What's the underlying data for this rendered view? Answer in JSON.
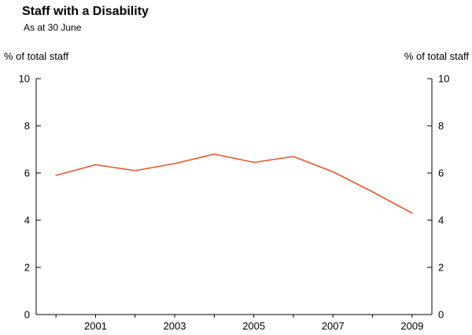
{
  "header": {
    "title": "Staff with a Disability",
    "subtitle": "As at 30 June"
  },
  "axis_units": {
    "left": "% of total staff",
    "right": "% of total staff"
  },
  "chart_data": {
    "type": "line",
    "title": "Staff with a Disability",
    "subtitle": "As at 30 June",
    "x": [
      2000,
      2001,
      2002,
      2003,
      2004,
      2005,
      2006,
      2007,
      2008,
      2009
    ],
    "series": [
      {
        "name": "Staff with a disability",
        "values": [
          5.9,
          6.35,
          6.1,
          6.4,
          6.8,
          6.45,
          6.7,
          6.05,
          5.2,
          4.3
        ]
      }
    ],
    "line_color": "#e8552b",
    "axis_color": "#000000",
    "xlim": [
      1999.5,
      2009.5
    ],
    "ylim": [
      0,
      10
    ],
    "yticks": [
      0,
      2,
      4,
      6,
      8,
      10
    ],
    "xtick_labels": [
      2001,
      2003,
      2005,
      2007,
      2009
    ],
    "xticks_minor": [
      2000,
      2001,
      2002,
      2003,
      2004,
      2005,
      2006,
      2007,
      2008,
      2009
    ],
    "ylabel_left": "% of total staff",
    "ylabel_right": "% of total staff",
    "grid": false,
    "legend_position": "none"
  }
}
